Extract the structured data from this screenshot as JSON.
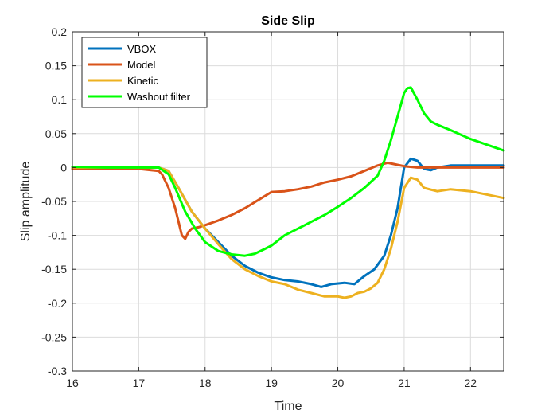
{
  "chart_data": {
    "type": "line",
    "title": "Side Slip",
    "xlabel": "Time",
    "ylabel": "Slip amplitude",
    "xlim": [
      16,
      22.5
    ],
    "ylim": [
      -0.3,
      0.2
    ],
    "xticks": [
      16,
      17,
      18,
      19,
      20,
      21,
      22
    ],
    "yticks": [
      0.2,
      0.15,
      0.1,
      0.05,
      0,
      -0.05,
      -0.1,
      -0.15,
      -0.2,
      -0.25,
      -0.3
    ],
    "xtick_labels": [
      "16",
      "17",
      "18",
      "19",
      "20",
      "21",
      "22"
    ],
    "ytick_labels": [
      "0.2",
      "0.15",
      "0.1",
      "0.05",
      "0",
      "-0.05",
      "-0.1",
      "-0.15",
      "-0.2",
      "-0.25",
      "-0.3"
    ],
    "grid": true,
    "legend_position": "top-left",
    "series": [
      {
        "name": "VBOX",
        "color": "#0072BD",
        "x": [
          16.0,
          16.5,
          17.0,
          17.3,
          17.45,
          17.6,
          17.8,
          18.0,
          18.2,
          18.4,
          18.6,
          18.8,
          19.0,
          19.2,
          19.4,
          19.6,
          19.75,
          19.9,
          20.1,
          20.25,
          20.4,
          20.55,
          20.7,
          20.8,
          20.9,
          21.0,
          21.1,
          21.2,
          21.3,
          21.4,
          21.5,
          21.7,
          22.0,
          22.5
        ],
        "y": [
          0.0,
          0.0,
          0.0,
          0.0,
          -0.005,
          -0.03,
          -0.065,
          -0.09,
          -0.11,
          -0.13,
          -0.145,
          -0.155,
          -0.162,
          -0.166,
          -0.168,
          -0.172,
          -0.176,
          -0.172,
          -0.17,
          -0.172,
          -0.16,
          -0.15,
          -0.13,
          -0.1,
          -0.06,
          0.0,
          0.013,
          0.01,
          -0.002,
          -0.004,
          0.0,
          0.003,
          0.003,
          0.003
        ]
      },
      {
        "name": "Model",
        "color": "#D95319",
        "x": [
          16.0,
          16.5,
          17.0,
          17.3,
          17.35,
          17.45,
          17.55,
          17.6,
          17.65,
          17.7,
          17.75,
          17.8,
          17.9,
          18.0,
          18.2,
          18.4,
          18.6,
          18.8,
          19.0,
          19.2,
          19.4,
          19.6,
          19.8,
          20.0,
          20.2,
          20.4,
          20.6,
          20.75,
          20.9,
          21.0,
          21.2,
          21.5,
          22.0,
          22.5
        ],
        "y": [
          -0.002,
          -0.002,
          -0.002,
          -0.005,
          -0.01,
          -0.03,
          -0.06,
          -0.08,
          -0.1,
          -0.105,
          -0.095,
          -0.09,
          -0.088,
          -0.085,
          -0.078,
          -0.07,
          -0.06,
          -0.048,
          -0.036,
          -0.035,
          -0.032,
          -0.028,
          -0.022,
          -0.018,
          -0.013,
          -0.005,
          0.003,
          0.007,
          0.004,
          0.002,
          0.0,
          0.0,
          0.0,
          0.0
        ]
      },
      {
        "name": "Kinetic",
        "color": "#EDB120",
        "x": [
          16.0,
          16.5,
          17.0,
          17.3,
          17.45,
          17.6,
          17.8,
          18.0,
          18.2,
          18.4,
          18.6,
          18.8,
          19.0,
          19.2,
          19.4,
          19.6,
          19.8,
          20.0,
          20.1,
          20.2,
          20.3,
          20.4,
          20.5,
          20.6,
          20.7,
          20.8,
          20.9,
          21.0,
          21.1,
          21.2,
          21.3,
          21.5,
          21.7,
          22.0,
          22.5
        ],
        "y": [
          0.0,
          0.0,
          0.0,
          0.0,
          -0.005,
          -0.03,
          -0.065,
          -0.09,
          -0.113,
          -0.135,
          -0.15,
          -0.16,
          -0.168,
          -0.172,
          -0.18,
          -0.185,
          -0.19,
          -0.19,
          -0.192,
          -0.19,
          -0.185,
          -0.183,
          -0.178,
          -0.17,
          -0.15,
          -0.12,
          -0.08,
          -0.03,
          -0.015,
          -0.018,
          -0.03,
          -0.035,
          -0.032,
          -0.035,
          -0.045
        ]
      },
      {
        "name": "Washout filter",
        "color": "#00FF00",
        "x": [
          16.0,
          16.5,
          17.0,
          17.3,
          17.45,
          17.55,
          17.7,
          17.85,
          18.0,
          18.2,
          18.4,
          18.6,
          18.75,
          18.9,
          19.0,
          19.2,
          19.4,
          19.6,
          19.8,
          20.0,
          20.2,
          20.4,
          20.6,
          20.7,
          20.8,
          20.9,
          21.0,
          21.05,
          21.1,
          21.2,
          21.3,
          21.4,
          21.5,
          21.7,
          22.0,
          22.5
        ],
        "y": [
          0.001,
          0.0,
          0.0,
          0.0,
          -0.01,
          -0.03,
          -0.065,
          -0.09,
          -0.11,
          -0.123,
          -0.128,
          -0.13,
          -0.127,
          -0.12,
          -0.115,
          -0.1,
          -0.09,
          -0.08,
          -0.07,
          -0.058,
          -0.045,
          -0.03,
          -0.012,
          0.01,
          0.04,
          0.075,
          0.11,
          0.117,
          0.118,
          0.1,
          0.08,
          0.068,
          0.063,
          0.055,
          0.042,
          0.025
        ]
      }
    ]
  }
}
